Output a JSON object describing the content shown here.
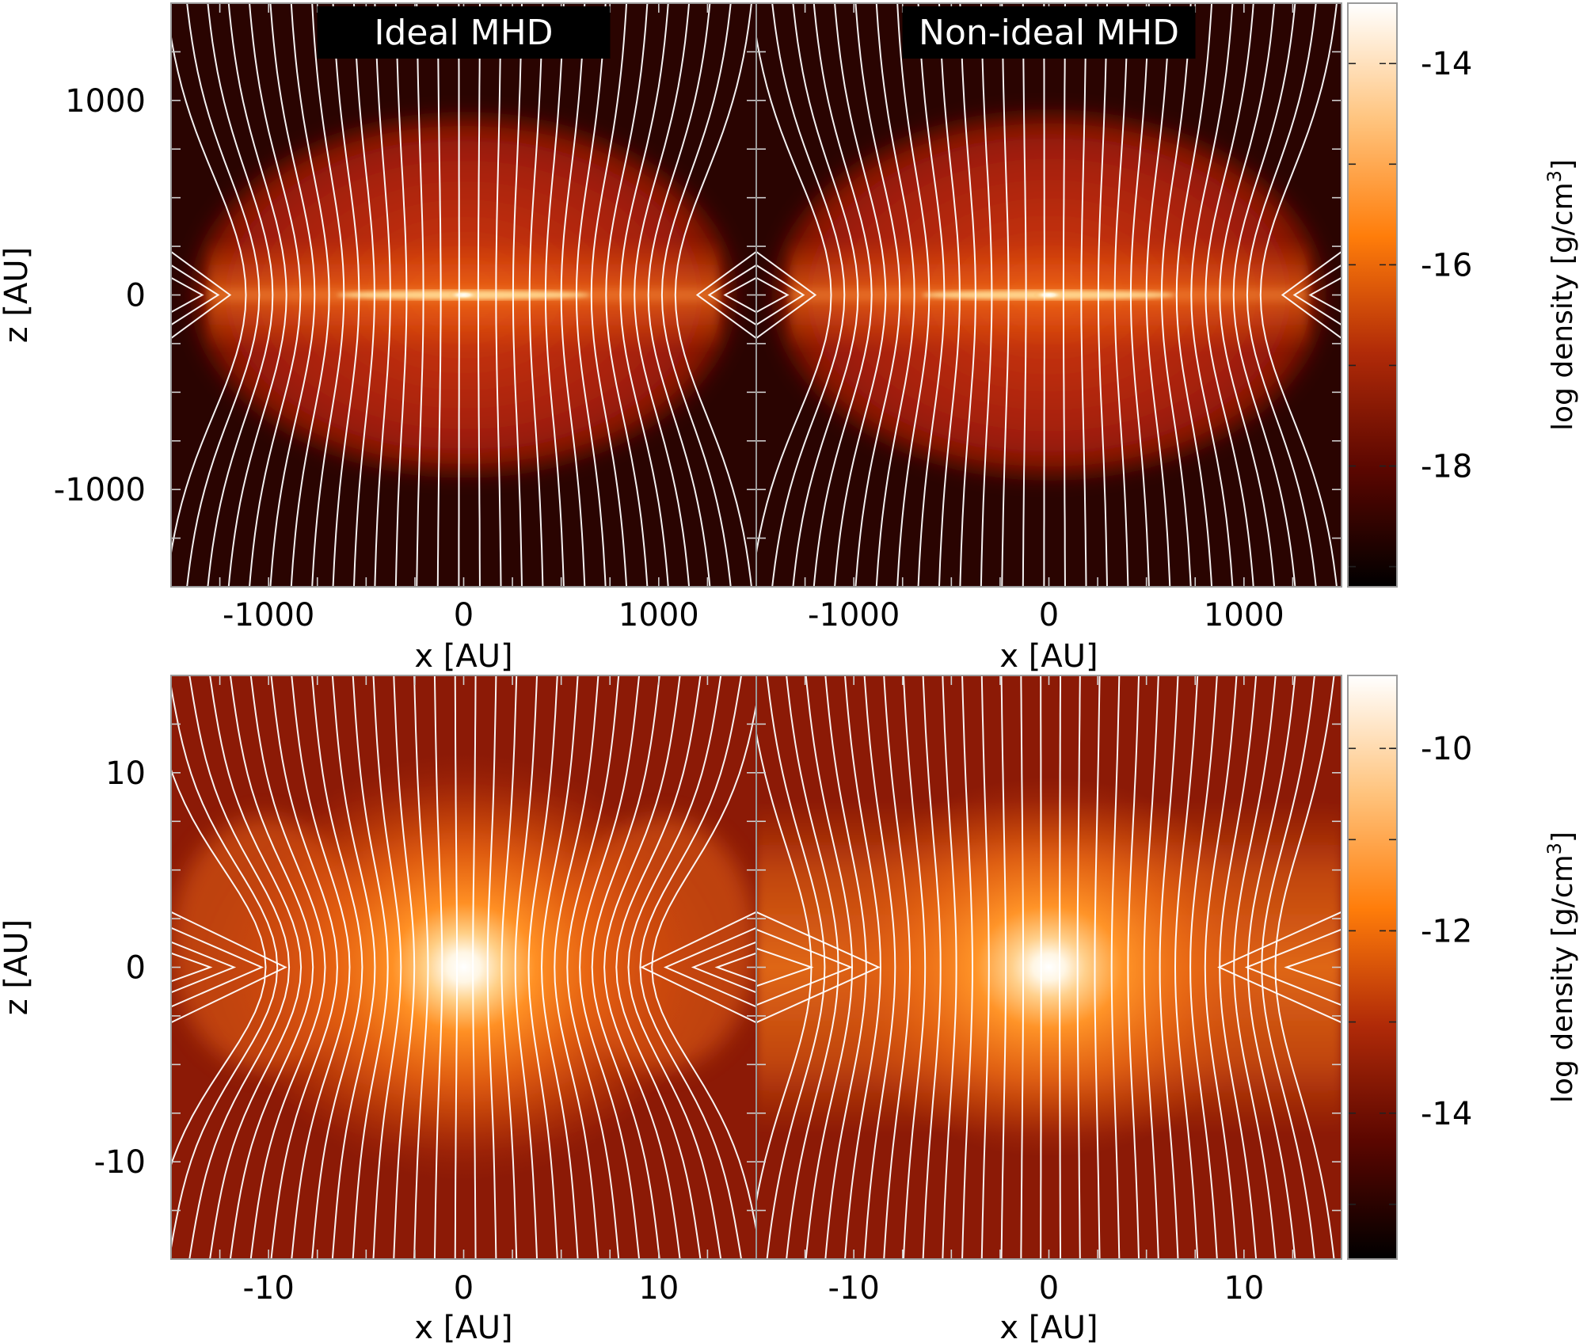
{
  "chart_data": [
    {
      "type": "heatmap",
      "panel": "top-left",
      "title": "Ideal MHD",
      "xlabel": "",
      "ylabel": "z [AU]",
      "xlim": [
        -1500,
        1500
      ],
      "ylim": [
        -1500,
        1500
      ],
      "xticks": [],
      "yticks": [
        -1000,
        0,
        1000
      ],
      "ytick_labels": [
        "-1000",
        "0",
        "1000"
      ],
      "overlay": "magnetic field lines (white)",
      "structure": {
        "core_radius": 1380,
        "pinch_x": [
          1100,
          1350
        ],
        "central_peak": [
          0,
          0
        ]
      }
    },
    {
      "type": "heatmap",
      "panel": "top-right",
      "title": "Non-ideal MHD",
      "xlabel": "",
      "ylabel": "",
      "xlim": [
        -1500,
        1500
      ],
      "ylim": [
        -1500,
        1500
      ],
      "overlay": "magnetic field lines (white)",
      "structure": {
        "core_radius": 1400,
        "pinch_x": [
          1100,
          1350
        ],
        "central_peak": [
          0,
          0
        ]
      }
    },
    {
      "type": "heatmap",
      "panel": "bottom-left",
      "title": "",
      "xlabel": "x [AU]",
      "ylabel": "z [AU]",
      "xlim": [
        -15,
        15
      ],
      "ylim": [
        -15,
        15
      ],
      "yticks": [
        -10,
        0,
        10
      ],
      "ytick_labels": [
        "-10",
        "0",
        "10"
      ],
      "overlay": "magnetic field lines (white)",
      "structure": {
        "central_peak": [
          0,
          0
        ],
        "pinch_x": [
          7,
          13
        ]
      }
    },
    {
      "type": "heatmap",
      "panel": "bottom-right",
      "title": "",
      "xlabel": "x [AU]",
      "ylabel": "",
      "xlim": [
        -15,
        15
      ],
      "ylim": [
        -15,
        15
      ],
      "overlay": "magnetic field lines (white)",
      "structure": {
        "central_peak": [
          0,
          0
        ],
        "pinch_x": [
          10,
          13
        ]
      }
    }
  ],
  "colorbars": [
    {
      "label_text": "log density [g/cm",
      "label_sup": "3",
      "label_close": "]",
      "range": [
        -19.2,
        -13.4
      ],
      "ticks": [
        -14,
        -16,
        -18
      ],
      "tick_labels": [
        "-14",
        "-16",
        "-18"
      ],
      "colormap": [
        "#000000",
        "#5a0600",
        "#b02a08",
        "#ff7d0a",
        "#ffc47e",
        "#ffffff"
      ]
    },
    {
      "label_text": "log density [g/cm",
      "label_sup": "3",
      "label_close": "]",
      "range": [
        -15.6,
        -9.2
      ],
      "ticks": [
        -10,
        -12,
        -14
      ],
      "tick_labels": [
        "-10",
        "-12",
        "-14"
      ],
      "colormap": [
        "#000000",
        "#5a0600",
        "#b02a08",
        "#ff7d0a",
        "#ffc47e",
        "#ffffff"
      ]
    }
  ],
  "axes": {
    "top_x_tick_labels": [
      "-1000",
      "0",
      "1000"
    ],
    "top_x_ticks": [
      -1000,
      0,
      1000
    ],
    "top_xlabel": "x [AU]",
    "bottom_x_tick_labels": [
      "-10",
      "0",
      "10"
    ],
    "bottom_x_ticks": [
      -10,
      0,
      10
    ]
  }
}
